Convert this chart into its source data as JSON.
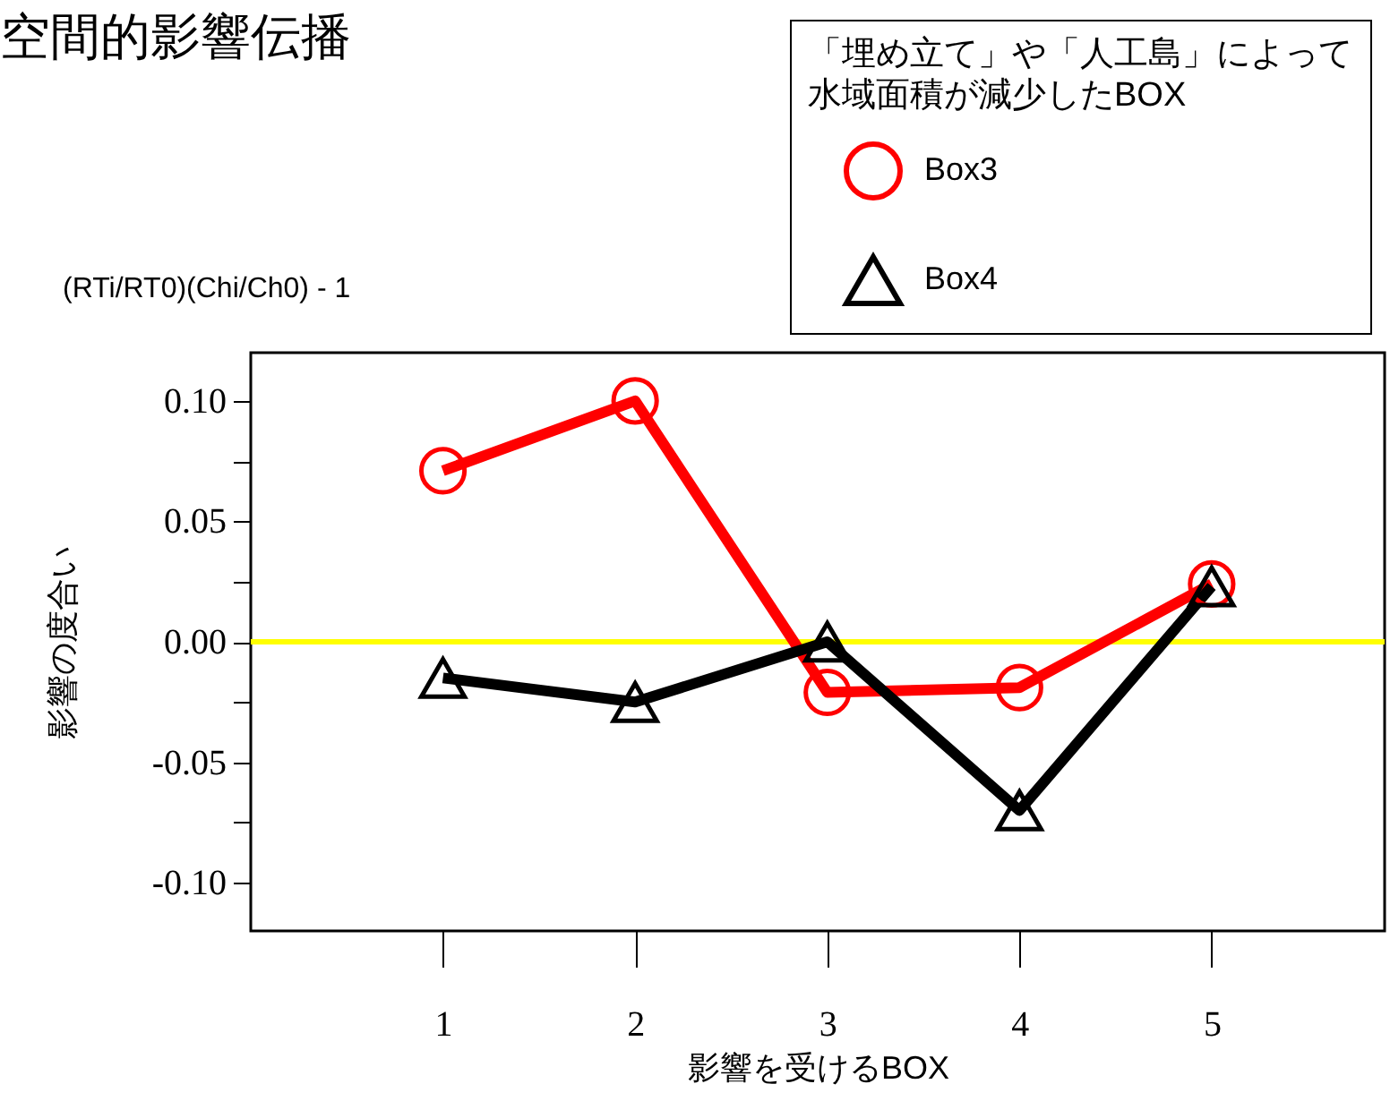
{
  "chart_data": {
    "type": "line",
    "title": "空間的影響伝播",
    "xlabel": "影響を受けるBOX",
    "ylabel": "影響の度合い",
    "legend_title": "「埋め立て」や「人工島」によって水域面積が減少したBOX",
    "annotations": [
      "(RTi/RT0)(Chi/Ch0) - 1"
    ],
    "x": [
      1,
      2,
      3,
      4,
      5
    ],
    "series": [
      {
        "name": "Box3",
        "color": "#ff0000",
        "marker": "circle",
        "values": [
          0.071,
          0.1,
          -0.021,
          -0.019,
          0.024
        ]
      },
      {
        "name": "Box4",
        "color": "#000000",
        "marker": "triangle",
        "values": [
          -0.015,
          -0.025,
          0.0,
          -0.07,
          0.023
        ]
      }
    ],
    "xlim": [
      0,
      5.9
    ],
    "xticks": [
      1,
      2,
      3,
      4,
      5
    ],
    "ylim": [
      -0.12,
      0.12
    ],
    "yticks": [
      {
        "value": -0.1,
        "label": "-0.10"
      },
      {
        "value": -0.075,
        "label": null
      },
      {
        "value": -0.05,
        "label": "-0.05"
      },
      {
        "value": -0.025,
        "label": null
      },
      {
        "value": 0.0,
        "label": "0.00"
      },
      {
        "value": 0.025,
        "label": null
      },
      {
        "value": 0.05,
        "label": "0.05"
      },
      {
        "value": 0.075,
        "label": null
      },
      {
        "value": 0.1,
        "label": "0.10"
      }
    ],
    "ref_lines": [
      {
        "axis": "y",
        "value": 0.0,
        "color": "#ffff00"
      }
    ],
    "legend": "top right",
    "grid": false,
    "line_style": "solid"
  }
}
